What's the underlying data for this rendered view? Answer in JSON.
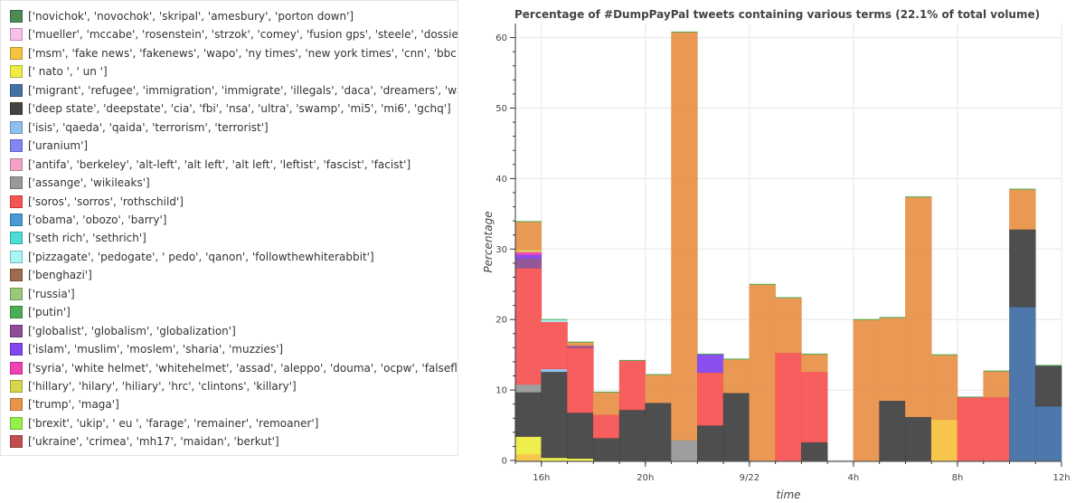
{
  "chart_data": {
    "type": "bar",
    "stacked": true,
    "title": "Percentage of #DumpPayPal tweets containing various terms (22.1% of total volume)",
    "xlabel": "time",
    "ylabel": "Percentage",
    "ylim": [
      0,
      62
    ],
    "yticks": [
      0,
      10,
      20,
      30,
      40,
      50,
      60
    ],
    "xticks": [
      "16h",
      "20h",
      "9/22",
      "4h",
      "8h",
      "12h"
    ],
    "xtick_bins": [
      1,
      5,
      9,
      13,
      17,
      21
    ],
    "bins": 21,
    "legend_position": "left",
    "series": [
      {
        "label": "['novichok', 'novochok', 'skripal', 'amesbury', 'porton down']",
        "color": "#4e8a54",
        "values": [
          0,
          0,
          0,
          0,
          0,
          0,
          0,
          0,
          0,
          0,
          0,
          0,
          0,
          0,
          0,
          0,
          0,
          0,
          0,
          0,
          0
        ]
      },
      {
        "label": "['mueller', 'mccabe', 'rosenstein', 'strzok', 'comey', 'fusion gps', 'steele', 'dossier']",
        "color": "#f7c0e8",
        "values": [
          0,
          0,
          0,
          0,
          0,
          0,
          0,
          0,
          0,
          0,
          0,
          0,
          0,
          0,
          0,
          0,
          0,
          0,
          0,
          0,
          0
        ]
      },
      {
        "label": "['msm', 'fake news', 'fakenews', 'wapo', 'ny times', 'new york times', 'cnn', 'bbc', 'tapper']",
        "color": "#f5c342",
        "values": [
          0.9,
          0,
          0,
          0,
          0,
          0,
          0,
          0,
          0,
          0,
          0,
          0,
          0,
          0,
          0,
          0,
          5.8,
          0,
          0,
          0,
          0
        ]
      },
      {
        "label": "[' nato ', ' un ']",
        "color": "#eded45",
        "values": [
          2.5,
          0.4,
          0.3,
          0,
          0,
          0,
          0,
          0,
          0,
          0,
          0,
          0,
          0,
          0,
          0,
          0,
          0,
          0,
          0,
          0,
          0
        ]
      },
      {
        "label": "['migrant', 'refugee', 'immigration', 'immigrate', 'illegals', 'daca', 'dreamers', 'wall']",
        "color": "#4471a6",
        "values": [
          0,
          0,
          0,
          0,
          0,
          0,
          0,
          0,
          0,
          0,
          0,
          0,
          0,
          0,
          0,
          0,
          0,
          0,
          0,
          21.8,
          7.7
        ]
      },
      {
        "label": "['deep state', 'deepstate', 'cia', 'fbi', 'nsa', 'ultra', 'swamp', 'mi5', 'mi6', 'gchq']",
        "color": "#444444",
        "values": [
          6.3,
          12.2,
          6.5,
          3.2,
          7.2,
          8.2,
          0,
          5,
          9.6,
          0,
          0,
          2.6,
          0,
          0,
          8.5,
          6.2,
          0,
          0,
          0,
          11,
          5.8
        ]
      },
      {
        "label": "['isis', 'qaeda', 'qaida', 'terrorism', 'terrorist']",
        "color": "#8fbfee",
        "values": [
          0,
          0.4,
          0,
          0,
          0,
          0,
          0,
          0,
          0,
          0,
          0,
          0,
          0,
          0,
          0,
          0,
          0,
          0,
          0,
          0,
          0
        ]
      },
      {
        "label": "['uranium']",
        "color": "#8484f2",
        "values": [
          0,
          0,
          0,
          0,
          0,
          0,
          0,
          0,
          0,
          0,
          0,
          0,
          0,
          0,
          0,
          0,
          0,
          0,
          0,
          0,
          0
        ]
      },
      {
        "label": "['antifa', 'berkeley', 'alt-left', 'alt left', 'alt left', 'leftist', 'fascist', 'facist']",
        "color": "#f5a2c8",
        "values": [
          0,
          0,
          0,
          0,
          0,
          0,
          0,
          0,
          0,
          0,
          0,
          0,
          0,
          0,
          0,
          0,
          0,
          0,
          0,
          0,
          0
        ]
      },
      {
        "label": "['assange', 'wikileaks']",
        "color": "#999999",
        "values": [
          1.1,
          0,
          0,
          0,
          0,
          0,
          2.9,
          0,
          0,
          0,
          0,
          0,
          0,
          0,
          0,
          0,
          0,
          0,
          0,
          0,
          0
        ]
      },
      {
        "label": "['soros', 'sorros', 'rothschild']",
        "color": "#f75555",
        "values": [
          16.5,
          6.7,
          9.2,
          3.3,
          7,
          0,
          0,
          7.5,
          0,
          0,
          15.3,
          10,
          0,
          0,
          0,
          0,
          0,
          9,
          9,
          0,
          0
        ]
      },
      {
        "label": "['obama', 'obozo', 'barry']",
        "color": "#4a98d8",
        "values": [
          0,
          0,
          0,
          0,
          0,
          0,
          0,
          0,
          0,
          0,
          0,
          0,
          0,
          0,
          0,
          0,
          0,
          0,
          0,
          0,
          0
        ]
      },
      {
        "label": "['seth rich', 'sethrich']",
        "color": "#4eddd4",
        "values": [
          0,
          0,
          0,
          0,
          0,
          0,
          0,
          0,
          0,
          0,
          0,
          0,
          0,
          0,
          0,
          0,
          0,
          0,
          0,
          0,
          0
        ]
      },
      {
        "label": "['pizzagate', 'pedogate', ' pedo', 'qanon', 'followthewhiterabbit']",
        "color": "#a8f6f6",
        "values": [
          0,
          0.3,
          0,
          0,
          0,
          0,
          0,
          0,
          0,
          0,
          0,
          0,
          0,
          0,
          0,
          0,
          0,
          0,
          0,
          0,
          0
        ]
      },
      {
        "label": "['benghazi']",
        "color": "#a06a4e",
        "values": [
          0,
          0,
          0,
          0,
          0,
          0,
          0,
          0,
          0,
          0,
          0,
          0,
          0,
          0,
          0,
          0,
          0,
          0,
          0,
          0,
          0
        ]
      },
      {
        "label": "['russia']",
        "color": "#9ac879",
        "values": [
          0,
          0,
          0,
          0,
          0,
          0,
          0,
          0,
          0,
          0,
          0,
          0,
          0,
          0,
          0,
          0,
          0,
          0,
          0,
          0,
          0
        ]
      },
      {
        "label": "['putin']",
        "color": "#4cae54",
        "values": [
          0,
          0,
          0,
          0,
          0,
          0,
          0,
          0,
          0,
          0,
          0,
          0,
          0,
          0,
          0,
          0,
          0,
          0,
          0,
          0,
          0
        ]
      },
      {
        "label": "['globalist', 'globalism', 'globalization']",
        "color": "#8e4e95",
        "values": [
          1.4,
          0,
          0.3,
          0,
          0,
          0,
          0,
          0,
          0,
          0,
          0,
          0,
          0,
          0,
          0,
          0,
          0,
          0,
          0,
          0,
          0
        ]
      },
      {
        "label": "['islam', 'muslim', 'moslem', 'sharia', 'muzzies']",
        "color": "#8346ee",
        "values": [
          0.5,
          0,
          0,
          0,
          0,
          0,
          0,
          2.6,
          0,
          0,
          0,
          0,
          0,
          0,
          0,
          0,
          0,
          0,
          0,
          0,
          0
        ]
      },
      {
        "label": "['syria', 'white helmet', 'whitehelmet', 'assad', 'aleppo', 'douma', 'ocpw', 'falseflag', 'false fla",
        "color": "#f042b4",
        "values": [
          0.4,
          0,
          0,
          0,
          0,
          0,
          0,
          0,
          0,
          0,
          0,
          0,
          0,
          0,
          0,
          0,
          0,
          0,
          0,
          0,
          0
        ]
      },
      {
        "label": "['hillary', 'hilary', 'hiliary', 'hrc', 'clintons', 'killary']",
        "color": "#d8d44e",
        "values": [
          0.3,
          0,
          0,
          0,
          0,
          0,
          0,
          0,
          0,
          0,
          0,
          0,
          0,
          0,
          0,
          0,
          0,
          0,
          0,
          0,
          0
        ]
      },
      {
        "label": "['trump', 'maga']",
        "color": "#e8944b",
        "values": [
          4,
          0,
          0.5,
          3.2,
          0,
          4,
          57.9,
          0,
          4.8,
          25,
          7.8,
          2.5,
          0,
          20,
          11.8,
          31.2,
          9.2,
          0,
          3.7,
          5.7,
          0
        ]
      },
      {
        "label": "['brexit', 'ukip', ' eu ', 'farage', 'remainer', 'remoaner']",
        "color": "#94f04a",
        "values": [
          0,
          0,
          0,
          0,
          0,
          0,
          0,
          0,
          0,
          0,
          0,
          0,
          0,
          0,
          0,
          0,
          0,
          0,
          0,
          0,
          0
        ]
      },
      {
        "label": "['ukraine', 'crimea', 'mh17', 'maidan', 'berkut']",
        "color": "#c24e4e",
        "values": [
          0,
          0,
          0,
          0,
          0,
          0,
          0,
          0,
          0,
          0,
          0,
          0,
          0,
          0,
          0,
          0,
          0,
          0,
          0,
          0,
          0
        ]
      }
    ]
  }
}
